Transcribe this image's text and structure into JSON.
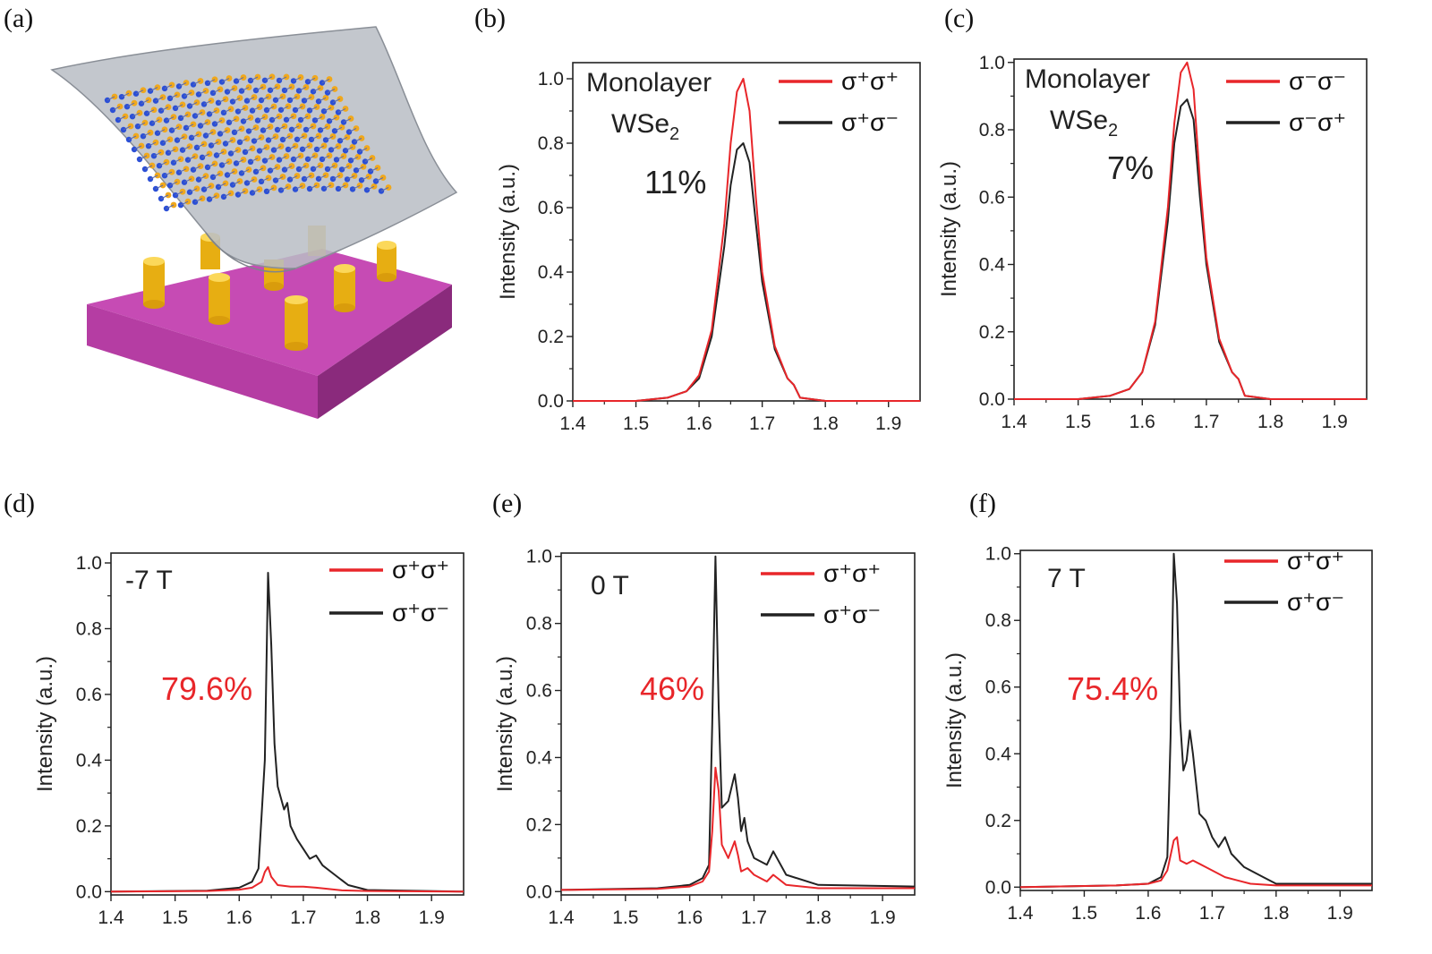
{
  "panel_labels": [
    "(a)",
    "(b)",
    "(c)",
    "(d)",
    "(e)",
    "(f)"
  ],
  "colors": {
    "red": "#e8262a",
    "black": "#222222",
    "substrate": "#c83cb4",
    "pillar": "#f2bd1c",
    "sheet": "#b8bcc4",
    "atom_w": "#2b4fd6",
    "atom_se": "#f0a81c"
  },
  "chart_data": [
    {
      "id": "b",
      "type": "line",
      "xlabel": "",
      "ylabel": "Intensity (a.u.)",
      "xlim": [
        1.4,
        1.95
      ],
      "ylim": [
        0,
        1.05
      ],
      "xticks": [
        "1.4",
        "1.5",
        "1.6",
        "1.7",
        "1.8",
        "1.9"
      ],
      "yticks": [
        "0.0",
        "0.2",
        "0.4",
        "0.6",
        "0.8",
        "1.0"
      ],
      "annotation": [
        "Monolayer",
        "WSe",
        "2"
      ],
      "percent": "11%",
      "percent_color": "#222222",
      "series": [
        {
          "name": "σ⁺σ⁺",
          "color": "#e8262a",
          "x": [
            1.4,
            1.5,
            1.55,
            1.58,
            1.6,
            1.62,
            1.64,
            1.65,
            1.66,
            1.67,
            1.68,
            1.69,
            1.7,
            1.72,
            1.74,
            1.75,
            1.76,
            1.8,
            1.95
          ],
          "y": [
            0.0,
            0.0,
            0.01,
            0.03,
            0.08,
            0.22,
            0.55,
            0.8,
            0.96,
            1.0,
            0.9,
            0.63,
            0.4,
            0.17,
            0.07,
            0.05,
            0.01,
            0.0,
            0.0
          ]
        },
        {
          "name": "σ⁺σ⁻",
          "color": "#222222",
          "x": [
            1.4,
            1.5,
            1.55,
            1.58,
            1.6,
            1.62,
            1.64,
            1.65,
            1.66,
            1.67,
            1.68,
            1.69,
            1.7,
            1.72,
            1.74,
            1.75,
            1.76,
            1.8,
            1.95
          ],
          "y": [
            0.0,
            0.0,
            0.01,
            0.03,
            0.07,
            0.2,
            0.48,
            0.67,
            0.78,
            0.8,
            0.74,
            0.55,
            0.37,
            0.16,
            0.07,
            0.05,
            0.01,
            0.0,
            0.0
          ]
        }
      ]
    },
    {
      "id": "c",
      "type": "line",
      "xlabel": "",
      "ylabel": "Intensity (a.u.)",
      "xlim": [
        1.4,
        1.95
      ],
      "ylim": [
        0,
        1.01
      ],
      "xticks": [
        "1.4",
        "1.5",
        "1.6",
        "1.7",
        "1.8",
        "1.9"
      ],
      "yticks": [
        "0.0",
        "0.2",
        "0.4",
        "0.6",
        "0.8",
        "1.0"
      ],
      "annotation": [
        "Monolayer",
        "WSe",
        "2"
      ],
      "percent": "7%",
      "percent_color": "#222222",
      "series": [
        {
          "name": "σ⁻σ⁻",
          "color": "#e8262a",
          "x": [
            1.4,
            1.5,
            1.55,
            1.58,
            1.6,
            1.62,
            1.64,
            1.65,
            1.66,
            1.67,
            1.68,
            1.69,
            1.7,
            1.72,
            1.74,
            1.75,
            1.76,
            1.8,
            1.95
          ],
          "y": [
            0.0,
            0.0,
            0.01,
            0.03,
            0.08,
            0.23,
            0.57,
            0.82,
            0.97,
            1.0,
            0.92,
            0.65,
            0.42,
            0.18,
            0.08,
            0.06,
            0.01,
            0.0,
            0.0
          ]
        },
        {
          "name": "σ⁻σ⁺",
          "color": "#222222",
          "x": [
            1.4,
            1.5,
            1.55,
            1.58,
            1.6,
            1.62,
            1.64,
            1.65,
            1.66,
            1.67,
            1.68,
            1.69,
            1.7,
            1.72,
            1.74,
            1.75,
            1.76,
            1.8,
            1.95
          ],
          "y": [
            0.0,
            0.0,
            0.01,
            0.03,
            0.08,
            0.22,
            0.53,
            0.76,
            0.87,
            0.89,
            0.83,
            0.6,
            0.4,
            0.17,
            0.08,
            0.06,
            0.01,
            0.0,
            0.0
          ]
        }
      ]
    },
    {
      "id": "d",
      "type": "line",
      "xlabel": "",
      "ylabel": "Intensity (a.u.)",
      "xlim": [
        1.4,
        1.95
      ],
      "ylim": [
        -0.01,
        1.03
      ],
      "xticks": [
        "1.4",
        "1.5",
        "1.6",
        "1.7",
        "1.8",
        "1.9"
      ],
      "yticks": [
        "0.0",
        "0.2",
        "0.4",
        "0.6",
        "0.8",
        "1.0"
      ],
      "annotation": [
        "-7 T"
      ],
      "percent": "79.6%",
      "percent_color": "#e8262a",
      "series": [
        {
          "name": "σ⁺σ⁺",
          "color": "#e8262a",
          "x": [
            1.4,
            1.55,
            1.6,
            1.62,
            1.635,
            1.64,
            1.645,
            1.65,
            1.66,
            1.68,
            1.7,
            1.72,
            1.74,
            1.76,
            1.8,
            1.95
          ],
          "y": [
            0.0,
            0.002,
            0.006,
            0.012,
            0.03,
            0.06,
            0.075,
            0.045,
            0.02,
            0.015,
            0.015,
            0.012,
            0.008,
            0.004,
            0.002,
            0.0
          ]
        },
        {
          "name": "σ⁺σ⁻",
          "color": "#222222",
          "x": [
            1.4,
            1.55,
            1.6,
            1.62,
            1.63,
            1.64,
            1.645,
            1.65,
            1.655,
            1.66,
            1.67,
            1.675,
            1.68,
            1.69,
            1.7,
            1.71,
            1.72,
            1.73,
            1.75,
            1.77,
            1.8,
            1.95
          ],
          "y": [
            0.0,
            0.003,
            0.012,
            0.03,
            0.07,
            0.4,
            0.97,
            0.75,
            0.45,
            0.32,
            0.25,
            0.27,
            0.2,
            0.16,
            0.13,
            0.1,
            0.11,
            0.08,
            0.05,
            0.02,
            0.005,
            0.0
          ]
        }
      ]
    },
    {
      "id": "e",
      "type": "line",
      "xlabel": "",
      "ylabel": "Intensity (a.u.)",
      "xlim": [
        1.4,
        1.95
      ],
      "ylim": [
        -0.01,
        1.01
      ],
      "xticks": [
        "1.4",
        "1.5",
        "1.6",
        "1.7",
        "1.8",
        "1.9"
      ],
      "yticks": [
        "0.0",
        "0.2",
        "0.4",
        "0.6",
        "0.8",
        "1.0"
      ],
      "annotation": [
        "0 T"
      ],
      "percent": "46%",
      "percent_color": "#e8262a",
      "series": [
        {
          "name": "σ⁺σ⁺",
          "color": "#e8262a",
          "x": [
            1.4,
            1.55,
            1.6,
            1.62,
            1.63,
            1.635,
            1.64,
            1.645,
            1.65,
            1.66,
            1.67,
            1.675,
            1.68,
            1.69,
            1.7,
            1.72,
            1.73,
            1.75,
            1.8,
            1.95
          ],
          "y": [
            0.005,
            0.008,
            0.015,
            0.03,
            0.06,
            0.18,
            0.37,
            0.3,
            0.14,
            0.1,
            0.15,
            0.11,
            0.06,
            0.07,
            0.05,
            0.03,
            0.05,
            0.02,
            0.01,
            0.01
          ]
        },
        {
          "name": "σ⁺σ⁻",
          "color": "#222222",
          "x": [
            1.4,
            1.55,
            1.6,
            1.62,
            1.63,
            1.635,
            1.64,
            1.645,
            1.65,
            1.66,
            1.67,
            1.675,
            1.68,
            1.685,
            1.69,
            1.7,
            1.72,
            1.73,
            1.75,
            1.8,
            1.95
          ],
          "y": [
            0.005,
            0.01,
            0.02,
            0.04,
            0.08,
            0.5,
            1.0,
            0.55,
            0.25,
            0.27,
            0.35,
            0.28,
            0.18,
            0.22,
            0.15,
            0.1,
            0.08,
            0.12,
            0.05,
            0.02,
            0.015
          ]
        }
      ]
    },
    {
      "id": "f",
      "type": "line",
      "xlabel": "",
      "ylabel": "Intensity (a.u.)",
      "xlim": [
        1.4,
        1.95
      ],
      "ylim": [
        -0.01,
        1.01
      ],
      "xticks": [
        "1.4",
        "1.5",
        "1.6",
        "1.7",
        "1.8",
        "1.9"
      ],
      "yticks": [
        "0.0",
        "0.2",
        "0.4",
        "0.6",
        "0.8",
        "1.0"
      ],
      "annotation": [
        "7 T"
      ],
      "percent": "75.4%",
      "percent_color": "#e8262a",
      "series": [
        {
          "name": "σ⁺σ⁺",
          "color": "#e8262a",
          "x": [
            1.4,
            1.55,
            1.6,
            1.62,
            1.63,
            1.64,
            1.645,
            1.65,
            1.66,
            1.67,
            1.68,
            1.69,
            1.7,
            1.72,
            1.74,
            1.76,
            1.8,
            1.95
          ],
          "y": [
            0.0,
            0.005,
            0.01,
            0.02,
            0.05,
            0.14,
            0.15,
            0.08,
            0.07,
            0.08,
            0.07,
            0.06,
            0.05,
            0.03,
            0.02,
            0.01,
            0.005,
            0.005
          ]
        },
        {
          "name": "σ⁺σ⁻",
          "color": "#222222",
          "x": [
            1.4,
            1.55,
            1.6,
            1.62,
            1.63,
            1.635,
            1.64,
            1.645,
            1.65,
            1.655,
            1.66,
            1.665,
            1.67,
            1.68,
            1.69,
            1.7,
            1.71,
            1.72,
            1.73,
            1.75,
            1.78,
            1.8,
            1.95
          ],
          "y": [
            0.0,
            0.005,
            0.01,
            0.03,
            0.09,
            0.45,
            1.0,
            0.85,
            0.5,
            0.35,
            0.38,
            0.47,
            0.4,
            0.22,
            0.2,
            0.15,
            0.12,
            0.15,
            0.1,
            0.06,
            0.03,
            0.01,
            0.01
          ]
        }
      ]
    }
  ]
}
